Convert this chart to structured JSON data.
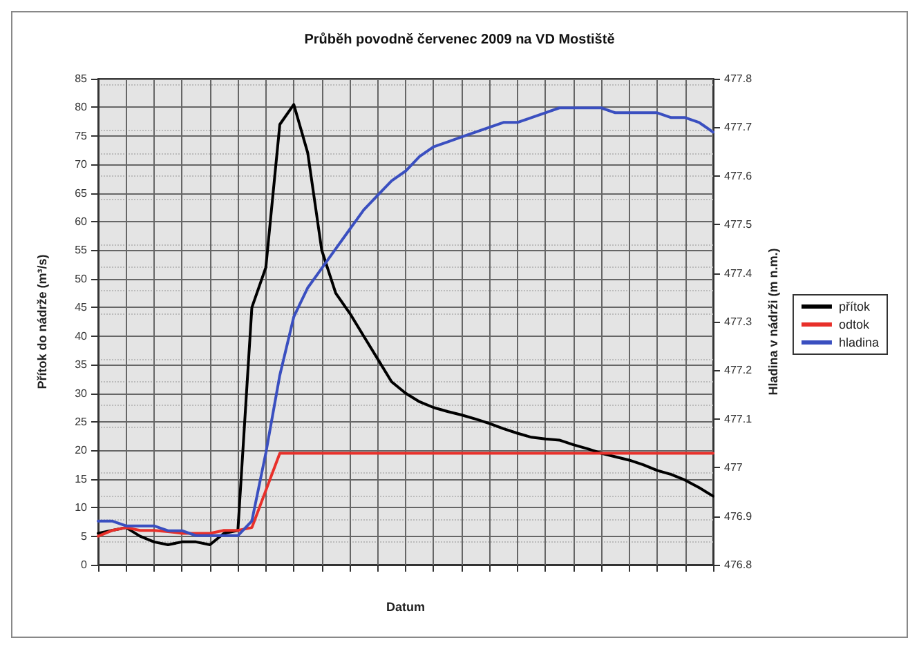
{
  "chart_data": {
    "type": "line",
    "title": "Průběh povodně červenec 2009 na VD Mostiště",
    "xlabel": "Datum",
    "ylabel": "Přítok do nádrže (m³/s)",
    "y2label": "Hladina v nádrži (m n.m.)",
    "categories": [
      null,
      null,
      null,
      null,
      null,
      null,
      null,
      null,
      null,
      null,
      null,
      null,
      null,
      null,
      null,
      null,
      null,
      null,
      null,
      null,
      null,
      null,
      null,
      null,
      null,
      null,
      null,
      null,
      null,
      null,
      null,
      null,
      null,
      null,
      null,
      null,
      null,
      null,
      null,
      null,
      null,
      null,
      null,
      null,
      null
    ],
    "series": [
      {
        "name": "přítok",
        "color": "#000000",
        "values": [
          5.5,
          6,
          6.5,
          5,
          4,
          3.5,
          4,
          4,
          3.5,
          5.5,
          6,
          45,
          52,
          77,
          80.5,
          72,
          55,
          47.5,
          44,
          40,
          36,
          32,
          30,
          28.5,
          27.5,
          26.8,
          26.2,
          25.5,
          24.7,
          23.8,
          23,
          22.3,
          22,
          21.8,
          21,
          20.3,
          19.5,
          18.9,
          18.3,
          17.5,
          16.5,
          15.8,
          14.8,
          13.5,
          12
        ]
      },
      {
        "name": "odtok",
        "color": "#e8302a",
        "values": [
          5,
          6,
          6.5,
          6,
          6,
          5.8,
          5.5,
          5.5,
          5.5,
          6,
          6,
          6.5,
          13,
          19.5,
          19.5,
          19.5,
          19.5,
          19.5,
          19.5,
          19.5,
          19.5,
          19.5,
          19.5,
          19.5,
          19.5,
          19.5,
          19.5,
          19.5,
          19.5,
          19.5,
          19.5,
          19.5,
          19.5,
          19.5,
          19.5,
          19.5,
          19.5,
          19.5,
          19.5,
          19.5,
          19.5,
          19.5,
          19.5,
          19.5,
          19.5
        ]
      },
      {
        "name": "hladina",
        "color": "#3a4fc0",
        "axis": "y2",
        "values": [
          476.89,
          476.89,
          476.88,
          476.88,
          476.88,
          476.87,
          476.87,
          476.86,
          476.86,
          476.86,
          476.86,
          476.89,
          477.03,
          477.19,
          477.31,
          477.37,
          477.41,
          477.45,
          477.49,
          477.53,
          477.56,
          477.59,
          477.61,
          477.64,
          477.66,
          477.67,
          477.68,
          477.69,
          477.7,
          477.71,
          477.71,
          477.72,
          477.73,
          477.74,
          477.74,
          477.74,
          477.74,
          477.73,
          477.73,
          477.73,
          477.73,
          477.72,
          477.72,
          477.71,
          477.69
        ]
      }
    ],
    "ylim": [
      0,
      85
    ],
    "yticks": [
      0,
      5,
      10,
      15,
      20,
      25,
      30,
      35,
      40,
      45,
      50,
      55,
      60,
      65,
      70,
      75,
      80,
      85
    ],
    "y2lim": [
      476.8,
      477.8
    ],
    "y2ticks": [
      {
        "value": 476.8,
        "label": "476.8"
      },
      {
        "value": 476.9,
        "label": "476.9"
      },
      {
        "value": 477,
        "label": "477"
      },
      {
        "value": 477.1,
        "label": "477.1"
      },
      {
        "value": 477.2,
        "label": "477.2"
      },
      {
        "value": 477.3,
        "label": "477.3"
      },
      {
        "value": 477.4,
        "label": "477.4"
      },
      {
        "value": 477.5,
        "label": "477.5"
      },
      {
        "value": 477.6,
        "label": "477.6"
      },
      {
        "value": 477.7,
        "label": "477.7"
      },
      {
        "value": 477.8,
        "label": "477.8"
      }
    ],
    "grid": true,
    "legend": "right",
    "marker": "none",
    "line_style": "solid"
  }
}
